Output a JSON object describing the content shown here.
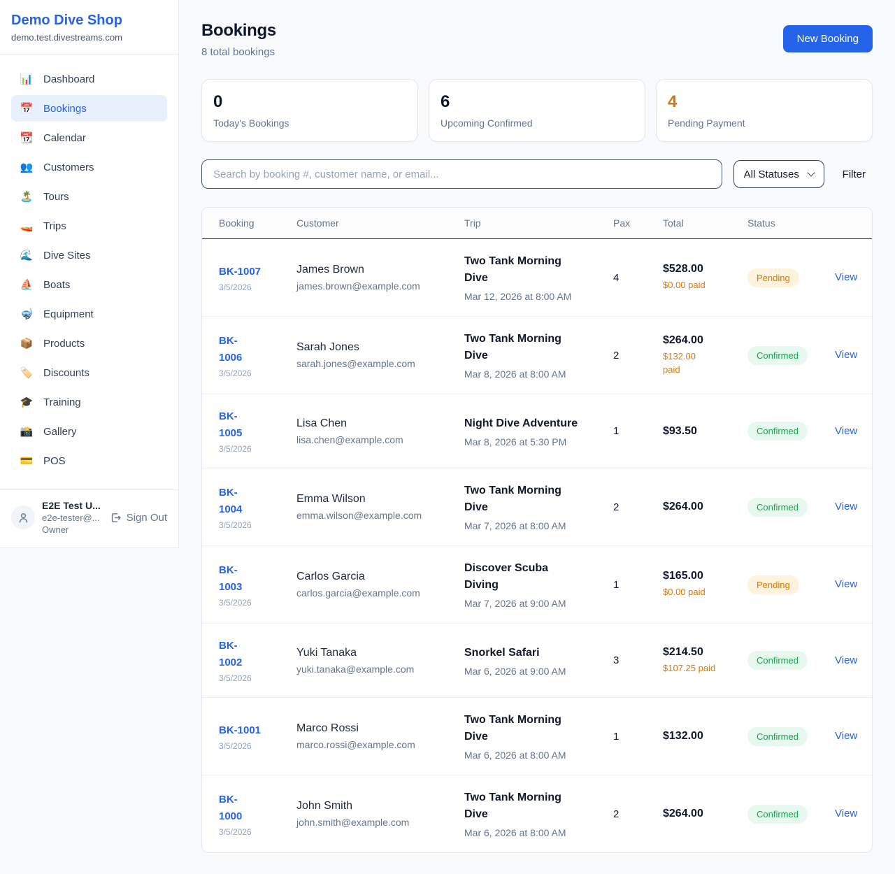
{
  "sidebar": {
    "brand": "Demo Dive Shop",
    "domain": "demo.test.divestreams.com",
    "items": [
      {
        "key": "dashboard",
        "icon": "📊",
        "label": "Dashboard",
        "active": false
      },
      {
        "key": "bookings",
        "icon": "📅",
        "label": "Bookings",
        "active": true
      },
      {
        "key": "calendar",
        "icon": "📆",
        "label": "Calendar",
        "active": false
      },
      {
        "key": "customers",
        "icon": "👥",
        "label": "Customers",
        "active": false
      },
      {
        "key": "tours",
        "icon": "🏝️",
        "label": "Tours",
        "active": false
      },
      {
        "key": "trips",
        "icon": "🚤",
        "label": "Trips",
        "active": false
      },
      {
        "key": "dive-sites",
        "icon": "🌊",
        "label": "Dive Sites",
        "active": false
      },
      {
        "key": "boats",
        "icon": "⛵",
        "label": "Boats",
        "active": false
      },
      {
        "key": "equipment",
        "icon": "🤿",
        "label": "Equipment",
        "active": false
      },
      {
        "key": "products",
        "icon": "📦",
        "label": "Products",
        "active": false
      },
      {
        "key": "discounts",
        "icon": "🏷️",
        "label": "Discounts",
        "active": false
      },
      {
        "key": "training",
        "icon": "🎓",
        "label": "Training",
        "active": false
      },
      {
        "key": "gallery",
        "icon": "📸",
        "label": "Gallery",
        "active": false
      },
      {
        "key": "pos",
        "icon": "💳",
        "label": "POS",
        "active": false
      }
    ],
    "user": {
      "name": "E2E Test U...",
      "email": "e2e-tester@...",
      "role": "Owner",
      "sign_out_label": "Sign Out"
    }
  },
  "header": {
    "title": "Bookings",
    "subtitle": "8 total bookings",
    "new_booking_label": "New Booking"
  },
  "stats": [
    {
      "value": "0",
      "label": "Today's Bookings",
      "accent": false
    },
    {
      "value": "6",
      "label": "Upcoming Confirmed",
      "accent": false
    },
    {
      "value": "4",
      "label": "Pending Payment",
      "accent": true
    }
  ],
  "controls": {
    "search_placeholder": "Search by booking #, customer name, or email...",
    "status_selected": "All Statuses",
    "filter_label": "Filter"
  },
  "table": {
    "columns": [
      "Booking",
      "Customer",
      "Trip",
      "Pax",
      "Total",
      "Status"
    ],
    "rows": [
      {
        "id": "BK-1007",
        "date": "3/5/2026",
        "customer": "James Brown",
        "email": "james.brown@example.com",
        "trip": "Two Tank Morning\nDive",
        "when": "Mar 12, 2026 at 8:00 AM",
        "pax": "4",
        "total": "$528.00",
        "paid": "$0.00 paid",
        "status": "Pending",
        "status_type": "pending",
        "action": "View"
      },
      {
        "id": "BK-\n1006",
        "date": "3/5/2026",
        "customer": "Sarah Jones",
        "email": "sarah.jones@example.com",
        "trip": "Two Tank Morning\nDive",
        "when": "Mar 8, 2026 at 8:00 AM",
        "pax": "2",
        "total": "$264.00",
        "paid": "$132.00\npaid",
        "status": "Confirmed",
        "status_type": "confirmed",
        "action": "View"
      },
      {
        "id": "BK-\n1005",
        "date": "3/5/2026",
        "customer": "Lisa Chen",
        "email": "lisa.chen@example.com",
        "trip": "Night Dive Adventure",
        "when": "Mar 8, 2026 at 5:30 PM",
        "pax": "1",
        "total": "$93.50",
        "paid": null,
        "status": "Confirmed",
        "status_type": "confirmed",
        "action": "View"
      },
      {
        "id": "BK-\n1004",
        "date": "3/5/2026",
        "customer": "Emma Wilson",
        "email": "emma.wilson@example.com",
        "trip": "Two Tank Morning\nDive",
        "when": "Mar 7, 2026 at 8:00 AM",
        "pax": "2",
        "total": "$264.00",
        "paid": null,
        "status": "Confirmed",
        "status_type": "confirmed",
        "action": "View"
      },
      {
        "id": "BK-\n1003",
        "date": "3/5/2026",
        "customer": "Carlos Garcia",
        "email": "carlos.garcia@example.com",
        "trip": "Discover Scuba\nDiving",
        "when": "Mar 7, 2026 at 9:00 AM",
        "pax": "1",
        "total": "$165.00",
        "paid": "$0.00 paid",
        "status": "Pending",
        "status_type": "pending",
        "action": "View"
      },
      {
        "id": "BK-\n1002",
        "date": "3/5/2026",
        "customer": "Yuki Tanaka",
        "email": "yuki.tanaka@example.com",
        "trip": "Snorkel Safari",
        "when": "Mar 6, 2026 at 9:00 AM",
        "pax": "3",
        "total": "$214.50",
        "paid": "$107.25 paid",
        "status": "Confirmed",
        "status_type": "confirmed",
        "action": "View"
      },
      {
        "id": "BK-1001",
        "date": "3/5/2026",
        "customer": "Marco Rossi",
        "email": "marco.rossi@example.com",
        "trip": "Two Tank Morning\nDive",
        "when": "Mar 6, 2026 at 8:00 AM",
        "pax": "1",
        "total": "$132.00",
        "paid": null,
        "status": "Confirmed",
        "status_type": "confirmed",
        "action": "View"
      },
      {
        "id": "BK-\n1000",
        "date": "3/5/2026",
        "customer": "John Smith",
        "email": "john.smith@example.com",
        "trip": "Two Tank Morning\nDive",
        "when": "Mar 6, 2026 at 8:00 AM",
        "pax": "2",
        "total": "$264.00",
        "paid": null,
        "status": "Confirmed",
        "status_type": "confirmed",
        "action": "View"
      }
    ]
  },
  "colors": {
    "accent_blue": "#2563eb",
    "accent_orange": "#d97706",
    "status_pending_bg": "#fdf3dd",
    "status_pending_text": "#d97706",
    "status_confirmed_bg": "#e7f8ee",
    "status_confirmed_text": "#16a34a",
    "page_bg": "#f8fafc"
  }
}
